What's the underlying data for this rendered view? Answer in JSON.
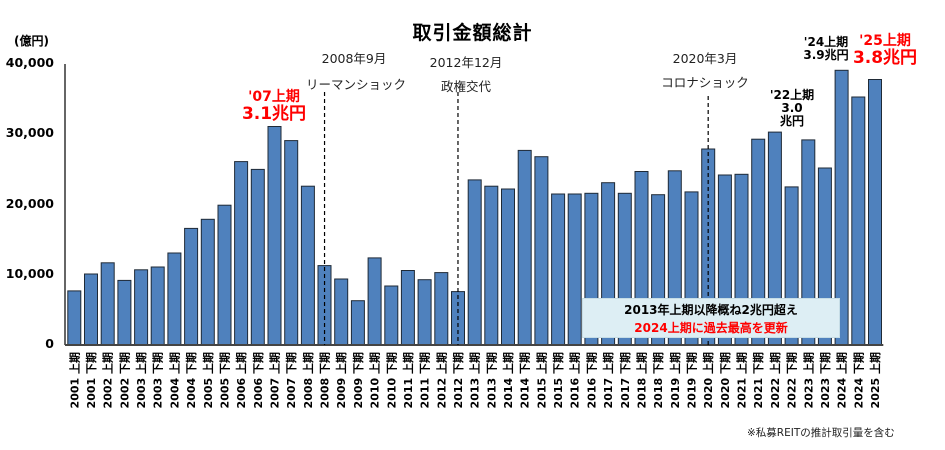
{
  "chart_data": {
    "type": "bar",
    "title": "取引金額総計",
    "ylabel": "(億円)",
    "xlabel": "",
    "ylim": [
      0,
      40000
    ],
    "yticks": [
      "0",
      "10,000",
      "20,000",
      "30,000",
      "40,000"
    ],
    "ytick_values": [
      0,
      10000,
      20000,
      30000,
      40000
    ],
    "grid": false,
    "bar_color": "#4f81bd",
    "categories": [
      "2001 上期",
      "2001 下期",
      "2002 上期",
      "2002 下期",
      "2003 上期",
      "2003 下期",
      "2004 上期",
      "2004 下期",
      "2005 上期",
      "2005 下期",
      "2006 上期",
      "2006 下期",
      "2007 上期",
      "2007 下期",
      "2008 上期",
      "2008 下期",
      "2009 上期",
      "2009 下期",
      "2010 上期",
      "2010 下期",
      "2011 上期",
      "2011 下期",
      "2012 上期",
      "2012 下期",
      "2013 上期",
      "2013 下期",
      "2014 上期",
      "2014 下期",
      "2015 上期",
      "2015 下期",
      "2016 上期",
      "2016 下期",
      "2017 上期",
      "2017 下期",
      "2018 上期",
      "2018 下期",
      "2019 上期",
      "2019 下期",
      "2020 上期",
      "2020 下期",
      "2021 上期",
      "2021 下期",
      "2022 上期",
      "2022 下期",
      "2023 上期",
      "2023 下期",
      "2024 上期",
      "2024 下期",
      "2025 上期"
    ],
    "values": [
      7700,
      10100,
      11700,
      9200,
      10700,
      11100,
      13100,
      16600,
      17900,
      19900,
      26100,
      25000,
      31100,
      29100,
      22600,
      11300,
      9400,
      6300,
      12400,
      8400,
      10600,
      9300,
      10300,
      7600,
      23500,
      22600,
      22200,
      27700,
      26800,
      21500,
      21500,
      21600,
      23100,
      21600,
      24700,
      21400,
      24800,
      21800,
      27900,
      24200,
      24300,
      29300,
      30300,
      22500,
      29200,
      25200,
      39100,
      35300,
      37800
    ],
    "events": [
      {
        "date": "2008年9月",
        "label": "リーマンショック",
        "after_category": "2008 下期"
      },
      {
        "date": "2012年12月",
        "label": "政権交代",
        "after_category": "2012 下期"
      },
      {
        "date": "2020年3月",
        "label": "コロナショック",
        "after_category": "2020 上期"
      }
    ],
    "annotations": [
      {
        "line1": "'07上期",
        "line2": "3.1兆円",
        "color": "#ff0000",
        "category": "2007 上期"
      },
      {
        "line1": "'22上期",
        "line2": "3.0",
        "line3": "兆円",
        "color": "#000000",
        "category": "2022 上期"
      },
      {
        "line1": "'24上期",
        "line2": "3.9兆円",
        "color": "#000000",
        "category": "2024 上期"
      },
      {
        "line1": "'25上期",
        "line2": "3.8兆円",
        "color": "#ff0000",
        "category": "2025 上期"
      }
    ],
    "callout": {
      "line1": "2013年上期以降概ね2兆円超え",
      "line2": "2024上期に過去最高を更新"
    },
    "footnote": "※私募REITの推計取引量を含む"
  }
}
